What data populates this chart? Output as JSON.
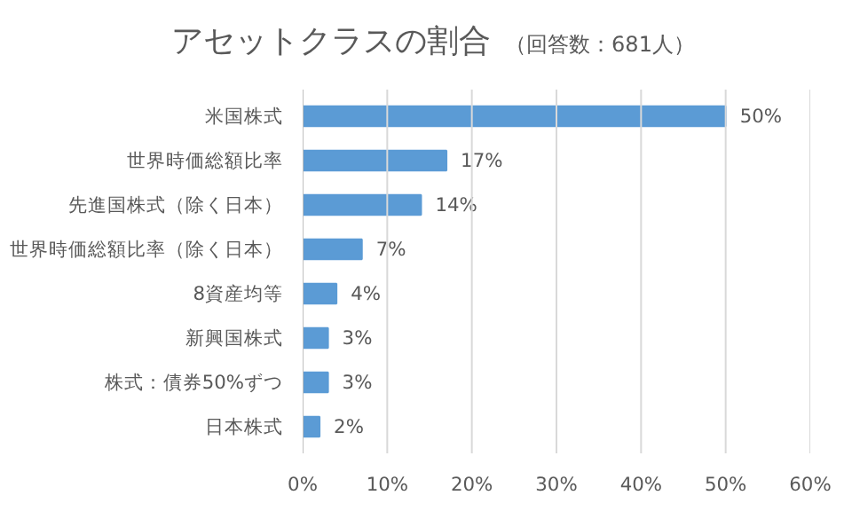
{
  "chart_data": {
    "type": "bar",
    "orientation": "horizontal",
    "title": "アセットクラスの割合",
    "subtitle": "（回答数：681人）",
    "categories": [
      "米国株式",
      "世界時価総額比率",
      "先進国株式（除く日本）",
      "世界時価総額比率（除く日本）",
      "8資産均等",
      "新興国株式",
      "株式：債券50%ずつ",
      "日本株式"
    ],
    "values": [
      50,
      17,
      14,
      7,
      4,
      3,
      3,
      2
    ],
    "value_labels": [
      "50%",
      "17%",
      "14%",
      "7%",
      "4%",
      "3%",
      "3%",
      "2%"
    ],
    "color": "#5b9bd5",
    "xlim": [
      0,
      60
    ],
    "xticks": [
      {
        "value": 0,
        "label": "0%"
      },
      {
        "value": 10,
        "label": "10%"
      },
      {
        "value": 20,
        "label": "20%"
      },
      {
        "value": 30,
        "label": "30%"
      },
      {
        "value": 40,
        "label": "40%"
      },
      {
        "value": 50,
        "label": "50%"
      },
      {
        "value": 60,
        "label": "60%"
      }
    ],
    "grid": "x"
  }
}
